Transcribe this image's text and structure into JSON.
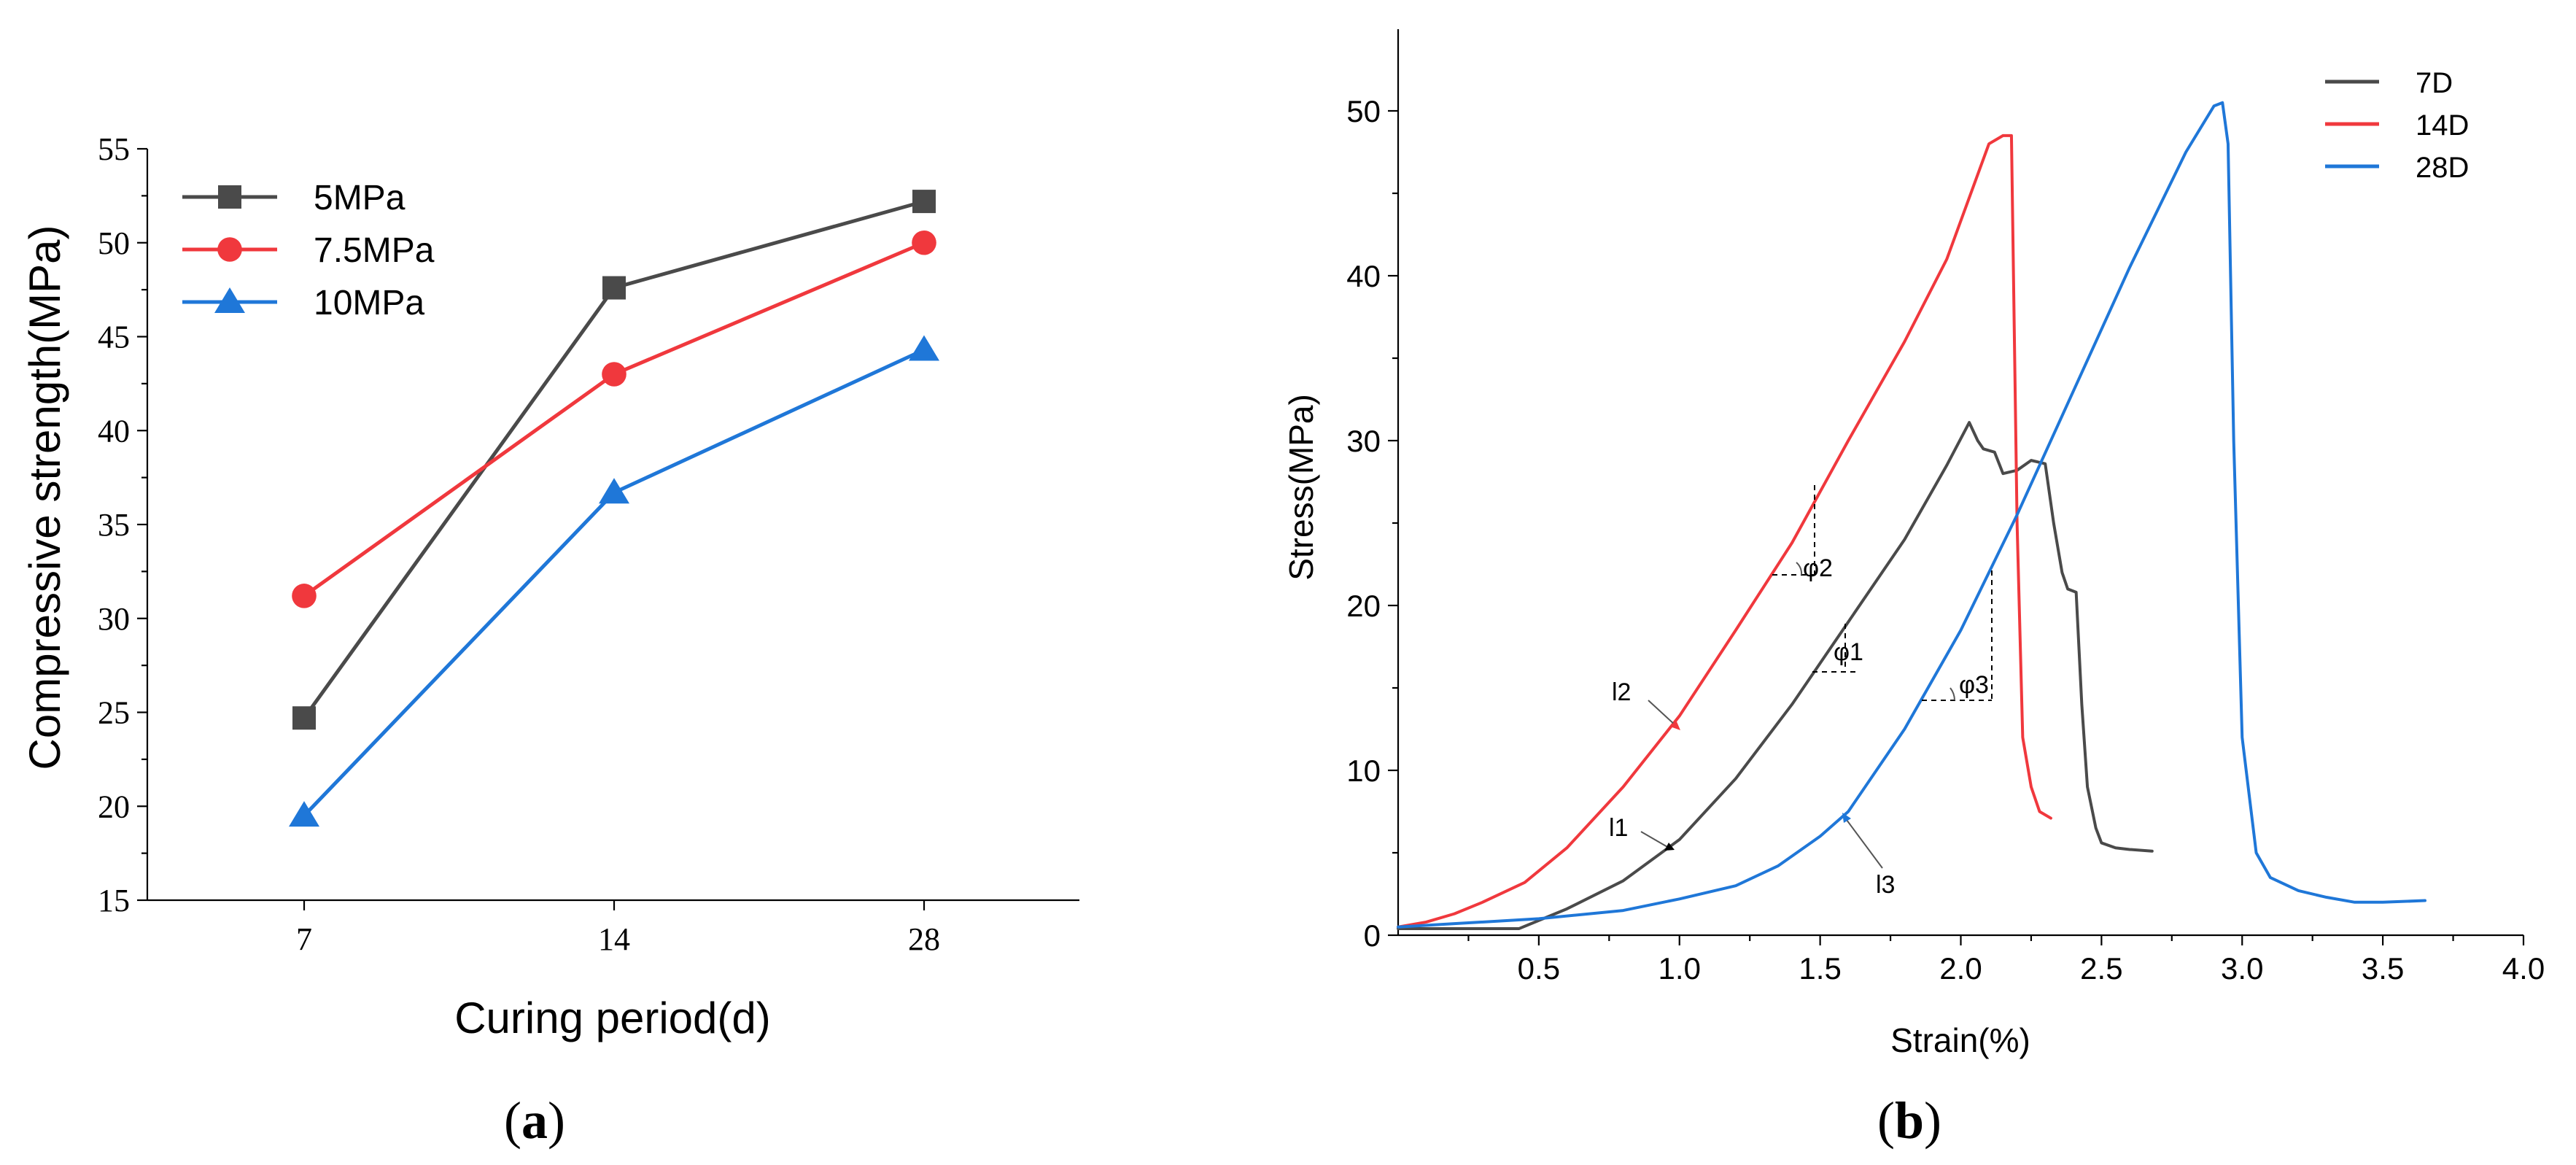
{
  "colors": {
    "gray": "#4a4a4a",
    "red": "#f0383d",
    "blue": "#1f77d8",
    "axis": "#000000"
  },
  "chart_data": [
    {
      "type": "line",
      "panel_label": "(a)",
      "panel_letter": "a",
      "xlabel": "Curing period(d)",
      "ylabel": "Compressive strength(MPa)",
      "categories": [
        "7",
        "14",
        "28"
      ],
      "ylim": [
        15,
        55
      ],
      "yticks": [
        "15",
        "20",
        "25",
        "30",
        "35",
        "40",
        "45",
        "50",
        "55"
      ],
      "legend_position": "top-left",
      "series": [
        {
          "name": "5MPa",
          "marker": "square",
          "color": "#4a4a4a",
          "values": [
            24.7,
            47.6,
            52.2
          ]
        },
        {
          "name": "7.5MPa",
          "marker": "circle",
          "color": "#f0383d",
          "values": [
            31.2,
            43.0,
            50.0
          ]
        },
        {
          "name": "10MPa",
          "marker": "triangle",
          "color": "#1f77d8",
          "values": [
            19.5,
            36.7,
            44.3
          ]
        }
      ]
    },
    {
      "type": "line",
      "panel_label": "(b)",
      "panel_letter": "b",
      "xlabel": "Strain(%)",
      "ylabel": "Stress(MPa)",
      "xlim": [
        0,
        4.0
      ],
      "ylim": [
        0,
        55
      ],
      "xticks": [
        "0.5",
        "1.0",
        "1.5",
        "2.0",
        "2.5",
        "3.0",
        "3.5",
        "4.0"
      ],
      "yticks": [
        "0",
        "10",
        "20",
        "30",
        "40",
        "50"
      ],
      "legend_position": "top-right",
      "series": [
        {
          "name": "7D",
          "color": "#4a4a4a",
          "x": [
            0.0,
            0.2,
            0.43,
            0.6,
            0.8,
            1.0,
            1.2,
            1.4,
            1.6,
            1.8,
            1.95,
            2.03,
            2.06,
            2.08,
            2.12,
            2.15,
            2.2,
            2.25,
            2.3,
            2.33,
            2.36,
            2.38,
            2.41,
            2.43,
            2.45,
            2.48,
            2.5,
            2.55,
            2.6,
            2.68
          ],
          "y": [
            0.4,
            0.4,
            0.4,
            1.6,
            3.3,
            5.8,
            9.5,
            14.0,
            19.0,
            24.0,
            28.5,
            31.1,
            30.0,
            29.5,
            29.3,
            28.0,
            28.2,
            28.8,
            28.6,
            25.0,
            22.0,
            21.0,
            20.8,
            14.0,
            9.0,
            6.5,
            5.6,
            5.3,
            5.2,
            5.1
          ]
        },
        {
          "name": "14D",
          "color": "#f0383d",
          "x": [
            0.0,
            0.1,
            0.2,
            0.3,
            0.45,
            0.6,
            0.8,
            1.0,
            1.2,
            1.4,
            1.6,
            1.8,
            1.95,
            2.1,
            2.15,
            2.18,
            2.2,
            2.22,
            2.25,
            2.28,
            2.32
          ],
          "y": [
            0.5,
            0.8,
            1.3,
            2.0,
            3.2,
            5.3,
            9.0,
            13.3,
            18.5,
            23.8,
            30.0,
            36.0,
            41.0,
            48.0,
            48.5,
            48.5,
            25.0,
            12.0,
            9.0,
            7.5,
            7.1
          ]
        },
        {
          "name": "28D",
          "color": "#1f77d8",
          "x": [
            0.0,
            0.2,
            0.5,
            0.8,
            1.0,
            1.2,
            1.35,
            1.5,
            1.6,
            1.8,
            2.0,
            2.2,
            2.4,
            2.6,
            2.8,
            2.9,
            2.93,
            2.95,
            2.97,
            3.0,
            3.05,
            3.1,
            3.2,
            3.3,
            3.4,
            3.5,
            3.65
          ],
          "y": [
            0.5,
            0.7,
            1.0,
            1.5,
            2.2,
            3.0,
            4.2,
            6.0,
            7.5,
            12.5,
            18.5,
            25.5,
            33.0,
            40.5,
            47.5,
            50.3,
            50.5,
            48.0,
            30.0,
            12.0,
            5.0,
            3.5,
            2.7,
            2.3,
            2.0,
            2.0,
            2.1
          ]
        }
      ],
      "annotations": {
        "l1": "l1",
        "l2": "l2",
        "l3": "l3",
        "phi1": "φ1",
        "phi2": "φ2",
        "phi3": "φ3"
      }
    }
  ]
}
